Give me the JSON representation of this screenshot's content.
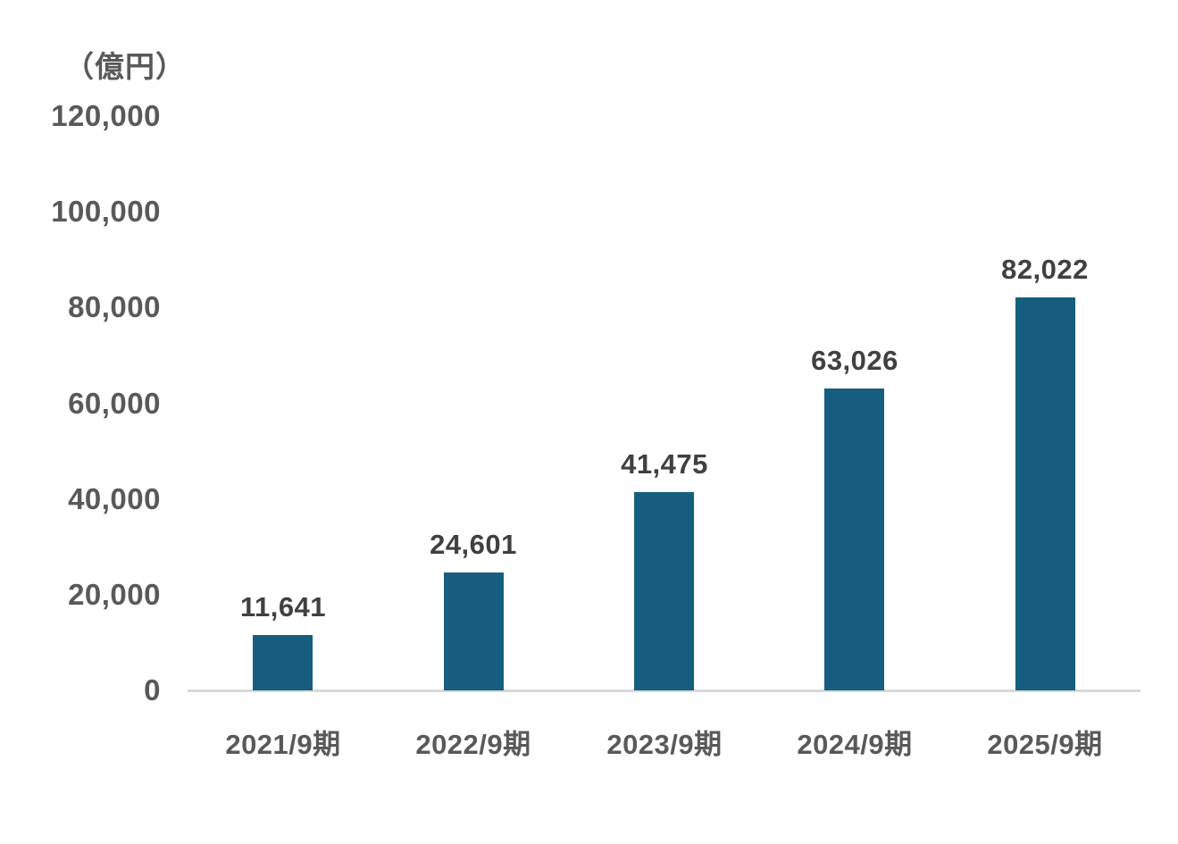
{
  "chart_data": {
    "type": "bar",
    "unit_label": "（億円）",
    "categories": [
      "2021/9期",
      "2022/9期",
      "2023/9期",
      "2024/9期",
      "2025/9期"
    ],
    "values": [
      11641,
      24601,
      41475,
      63026,
      82022
    ],
    "value_labels": [
      "11,641",
      "24,601",
      "41,475",
      "63,026",
      "82,022"
    ],
    "y_tick_values": [
      0,
      20000,
      40000,
      60000,
      80000,
      100000,
      120000
    ],
    "y_tick_labels": [
      "0",
      "20,000",
      "40,000",
      "60,000",
      "80,000",
      "100,000",
      "120,000"
    ],
    "ylim": [
      0,
      120000
    ],
    "grid": false,
    "legend": null,
    "colors": {
      "bar": "#165E7F",
      "value_label_text": "#404040",
      "axis_text": "#595959",
      "axis_line": "#D9D9D9",
      "background": "#FFFFFF"
    }
  }
}
